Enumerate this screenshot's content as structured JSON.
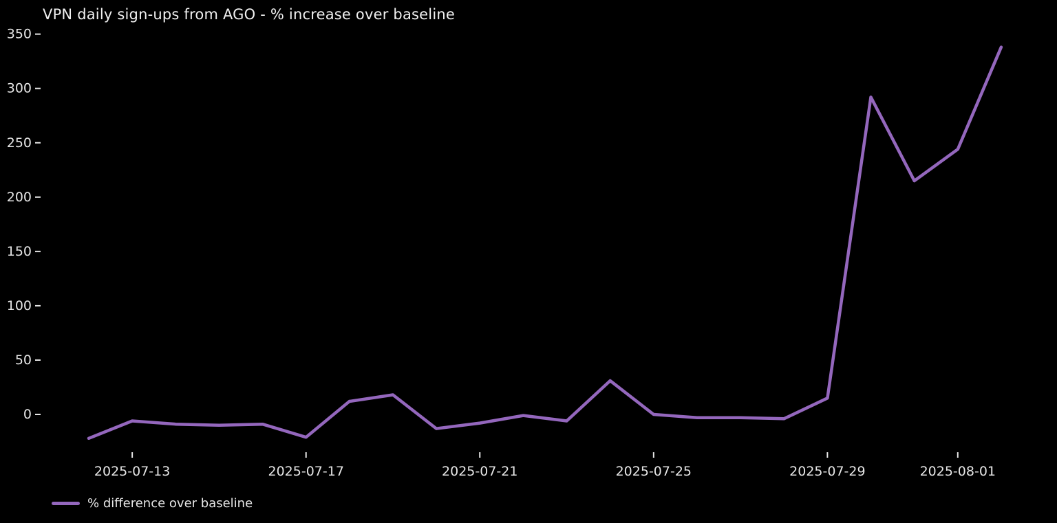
{
  "window": {
    "background": "#000000",
    "text_color": "#e6e6e6"
  },
  "chart_data": {
    "type": "line",
    "title": "VPN daily sign-ups from AGO - % increase over baseline",
    "x": [
      "2025-07-12",
      "2025-07-13",
      "2025-07-14",
      "2025-07-15",
      "2025-07-16",
      "2025-07-17",
      "2025-07-18",
      "2025-07-19",
      "2025-07-20",
      "2025-07-21",
      "2025-07-22",
      "2025-07-23",
      "2025-07-24",
      "2025-07-25",
      "2025-07-26",
      "2025-07-27",
      "2025-07-28",
      "2025-07-29",
      "2025-07-30",
      "2025-07-31",
      "2025-08-01",
      "2025-08-02"
    ],
    "series": [
      {
        "name": "% difference over baseline",
        "color": "#9467bd",
        "values": [
          -22,
          -6,
          -9,
          -10,
          -9,
          -21,
          12,
          18,
          -13,
          -8,
          -1,
          -6,
          31,
          0,
          -3,
          -3,
          -4,
          15,
          292,
          215,
          244,
          338
        ]
      }
    ],
    "x_ticks": [
      {
        "label": "2025-07-13",
        "day_index": 1
      },
      {
        "label": "2025-07-17",
        "day_index": 5
      },
      {
        "label": "2025-07-21",
        "day_index": 9
      },
      {
        "label": "2025-07-25",
        "day_index": 13
      },
      {
        "label": "2025-07-29",
        "day_index": 17
      },
      {
        "label": "2025-08-01",
        "day_index": 20
      }
    ],
    "y_ticks": [
      0,
      50,
      100,
      150,
      200,
      250,
      300,
      350
    ],
    "ylim": [
      -33,
      356
    ],
    "xlabel": "",
    "ylabel": "",
    "grid": false,
    "legend_position": "lower-left",
    "tick_color": "#e6e6e6"
  }
}
